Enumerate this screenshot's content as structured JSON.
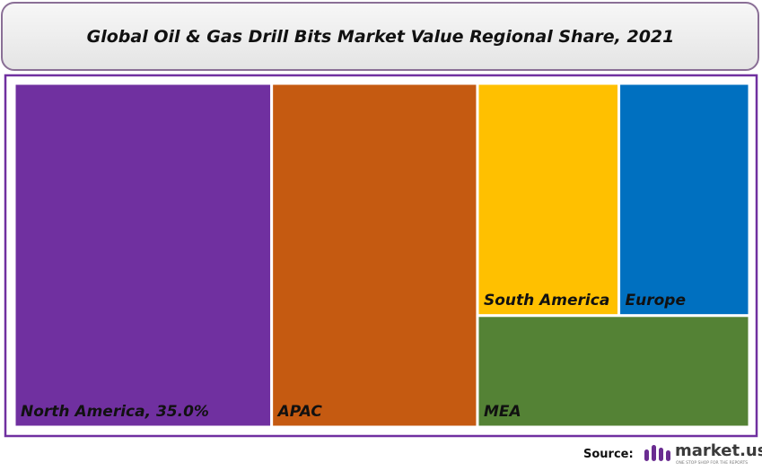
{
  "chart_data": {
    "type": "treemap",
    "title": "Global Oil & Gas Drill Bits Market Value Regional Share, 2021",
    "categories": [
      "North America, 35.0%",
      "APAC",
      "South America",
      "Europe",
      "MEA"
    ],
    "values": [
      35,
      28,
      13,
      12,
      12
    ],
    "colors": [
      "#7030a0",
      "#c55a11",
      "#ffc000",
      "#0070c0",
      "#548235"
    ],
    "source_label": "Source:",
    "logo_text": "market.us",
    "logo_tagline": "ONE STOP SHOP FOR THE REPORTS"
  }
}
